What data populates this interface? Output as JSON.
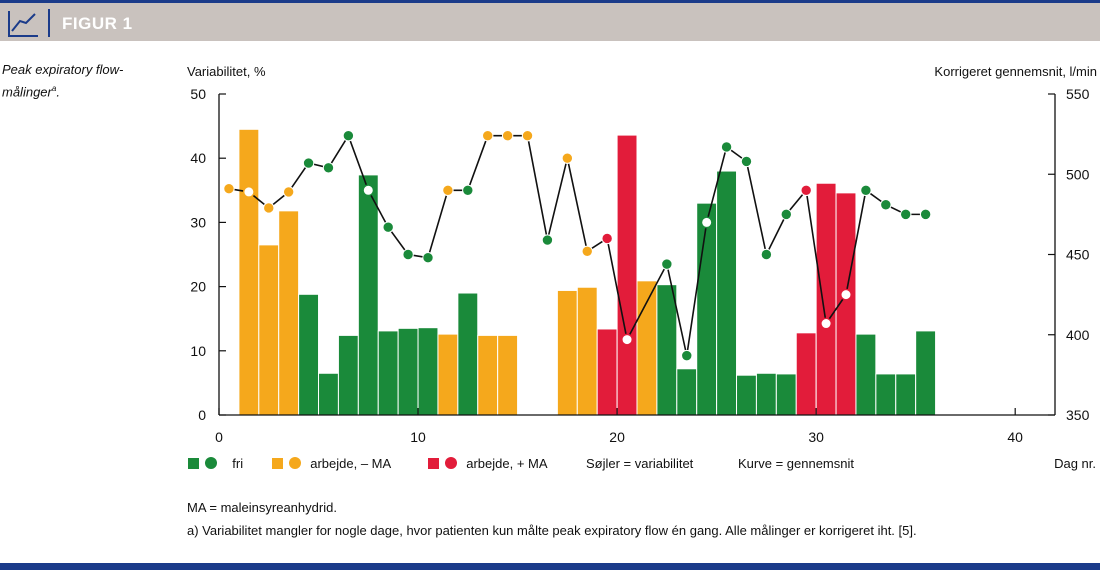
{
  "figure": {
    "label": "FIGUR 1",
    "icon": "line-chart-icon",
    "caption": "Peak expiratory flow-målinger",
    "caption_sup": "a"
  },
  "chart_data": {
    "type": "bar+line",
    "ylabel_left": "Variabilitet, %",
    "ylabel_right": "Korrigeret gennemsnit, l/min",
    "xlabel": "Dag nr.",
    "xlim": [
      0,
      42
    ],
    "ylim_left": [
      0,
      50
    ],
    "ylim_right": [
      350,
      550
    ],
    "xticks": [
      0,
      10,
      20,
      30,
      40
    ],
    "yticks_left": [
      0,
      10,
      20,
      30,
      40,
      50
    ],
    "yticks_right": [
      350,
      400,
      450,
      500,
      550
    ],
    "colors": {
      "fri": "#1a8a3a",
      "arbejde_minus_MA": "#f5a81c",
      "arbejde_plus_MA": "#e21c3a",
      "line": "#111111"
    },
    "bars": [
      {
        "day": 2,
        "value": 44.5,
        "status": "arbejde_minus_MA"
      },
      {
        "day": 3,
        "value": 26.5,
        "status": "arbejde_minus_MA"
      },
      {
        "day": 4,
        "value": 31.8,
        "status": "arbejde_minus_MA"
      },
      {
        "day": 5,
        "value": 18.8,
        "status": "fri"
      },
      {
        "day": 6,
        "value": 6.5,
        "status": "fri"
      },
      {
        "day": 7,
        "value": 12.4,
        "status": "fri"
      },
      {
        "day": 8,
        "value": 37.4,
        "status": "fri"
      },
      {
        "day": 9,
        "value": 13.1,
        "status": "fri"
      },
      {
        "day": 10,
        "value": 13.5,
        "status": "fri"
      },
      {
        "day": 11,
        "value": 13.6,
        "status": "fri"
      },
      {
        "day": 12,
        "value": 12.6,
        "status": "arbejde_minus_MA"
      },
      {
        "day": 13,
        "value": 19.0,
        "status": "fri"
      },
      {
        "day": 14,
        "value": 12.4,
        "status": "arbejde_minus_MA"
      },
      {
        "day": 15,
        "value": 12.4,
        "status": "arbejde_minus_MA"
      },
      {
        "day": 18,
        "value": 19.4,
        "status": "arbejde_minus_MA"
      },
      {
        "day": 19,
        "value": 19.9,
        "status": "arbejde_minus_MA"
      },
      {
        "day": 20,
        "value": 13.4,
        "status": "arbejde_plus_MA"
      },
      {
        "day": 21,
        "value": 43.6,
        "status": "arbejde_plus_MA"
      },
      {
        "day": 22,
        "value": 20.9,
        "status": "arbejde_minus_MA"
      },
      {
        "day": 23,
        "value": 20.3,
        "status": "fri"
      },
      {
        "day": 24,
        "value": 7.2,
        "status": "fri"
      },
      {
        "day": 25,
        "value": 33.0,
        "status": "fri"
      },
      {
        "day": 26,
        "value": 38.0,
        "status": "fri"
      },
      {
        "day": 27,
        "value": 6.2,
        "status": "fri"
      },
      {
        "day": 28,
        "value": 6.5,
        "status": "fri"
      },
      {
        "day": 29,
        "value": 6.4,
        "status": "fri"
      },
      {
        "day": 30,
        "value": 12.8,
        "status": "arbejde_plus_MA"
      },
      {
        "day": 31,
        "value": 36.1,
        "status": "arbejde_plus_MA"
      },
      {
        "day": 32,
        "value": 34.6,
        "status": "arbejde_plus_MA"
      },
      {
        "day": 33,
        "value": 12.6,
        "status": "fri"
      },
      {
        "day": 34,
        "value": 6.4,
        "status": "fri"
      },
      {
        "day": 35,
        "value": 6.4,
        "status": "fri"
      },
      {
        "day": 36,
        "value": 13.1,
        "status": "fri"
      }
    ],
    "line": [
      {
        "day": 1,
        "value": 491,
        "status": "arbejde_minus_MA",
        "hollow": false
      },
      {
        "day": 2,
        "value": 489,
        "status": "arbejde_minus_MA",
        "hollow": true
      },
      {
        "day": 3,
        "value": 479,
        "status": "arbejde_minus_MA",
        "hollow": false
      },
      {
        "day": 4,
        "value": 489,
        "status": "arbejde_minus_MA",
        "hollow": false
      },
      {
        "day": 5,
        "value": 507,
        "status": "fri",
        "hollow": false
      },
      {
        "day": 6,
        "value": 504,
        "status": "fri",
        "hollow": false
      },
      {
        "day": 7,
        "value": 524,
        "status": "fri",
        "hollow": false
      },
      {
        "day": 8,
        "value": 490,
        "status": "fri",
        "hollow": true
      },
      {
        "day": 9,
        "value": 467,
        "status": "fri",
        "hollow": false
      },
      {
        "day": 10,
        "value": 450,
        "status": "fri",
        "hollow": false
      },
      {
        "day": 11,
        "value": 448,
        "status": "fri",
        "hollow": false
      },
      {
        "day": 12,
        "value": 490,
        "status": "arbejde_minus_MA",
        "hollow": false
      },
      {
        "day": 13,
        "value": 490,
        "status": "fri",
        "hollow": false
      },
      {
        "day": 14,
        "value": 524,
        "status": "arbejde_minus_MA",
        "hollow": false
      },
      {
        "day": 15,
        "value": 524,
        "status": "arbejde_minus_MA",
        "hollow": false
      },
      {
        "day": 16,
        "value": 524,
        "status": "arbejde_minus_MA",
        "hollow": false
      },
      {
        "day": 17,
        "value": 459,
        "status": "fri",
        "hollow": false
      },
      {
        "day": 18,
        "value": 510,
        "status": "arbejde_minus_MA",
        "hollow": false
      },
      {
        "day": 19,
        "value": 452,
        "status": "arbejde_minus_MA",
        "hollow": false
      },
      {
        "day": 20,
        "value": 460,
        "status": "arbejde_plus_MA",
        "hollow": false
      },
      {
        "day": 21,
        "value": 397,
        "status": "arbejde_plus_MA",
        "hollow": true
      },
      {
        "day": 23,
        "value": 444,
        "status": "fri",
        "hollow": false
      },
      {
        "day": 24,
        "value": 387,
        "status": "fri",
        "hollow": false
      },
      {
        "day": 25,
        "value": 470,
        "status": "fri",
        "hollow": true
      },
      {
        "day": 26,
        "value": 517,
        "status": "fri",
        "hollow": false
      },
      {
        "day": 27,
        "value": 508,
        "status": "fri",
        "hollow": false
      },
      {
        "day": 28,
        "value": 450,
        "status": "fri",
        "hollow": false
      },
      {
        "day": 29,
        "value": 475,
        "status": "fri",
        "hollow": false
      },
      {
        "day": 30,
        "value": 490,
        "status": "arbejde_plus_MA",
        "hollow": false
      },
      {
        "day": 31,
        "value": 407,
        "status": "arbejde_plus_MA",
        "hollow": true
      },
      {
        "day": 32,
        "value": 425,
        "status": "arbejde_plus_MA",
        "hollow": true
      },
      {
        "day": 33,
        "value": 490,
        "status": "fri",
        "hollow": false
      },
      {
        "day": 34,
        "value": 481,
        "status": "fri",
        "hollow": false
      },
      {
        "day": 35,
        "value": 475,
        "status": "fri",
        "hollow": false
      },
      {
        "day": 36,
        "value": 475,
        "status": "fri",
        "hollow": false
      }
    ]
  },
  "legend": {
    "fri": "fri",
    "arbejde_minus_MA": "arbejde, – MA",
    "arbejde_plus_MA": "arbejde, + MA",
    "bars_note": "Søjler = variabilitet",
    "line_note": "Kurve = gennemsnit"
  },
  "footnotes": {
    "abbrev": "MA = maleinsyreanhydrid.",
    "note_a": "a) Variabilitet mangler for nogle dage, hvor patienten kun målte peak expiratory flow én gang. Alle målinger er korrigeret iht. [5]."
  }
}
